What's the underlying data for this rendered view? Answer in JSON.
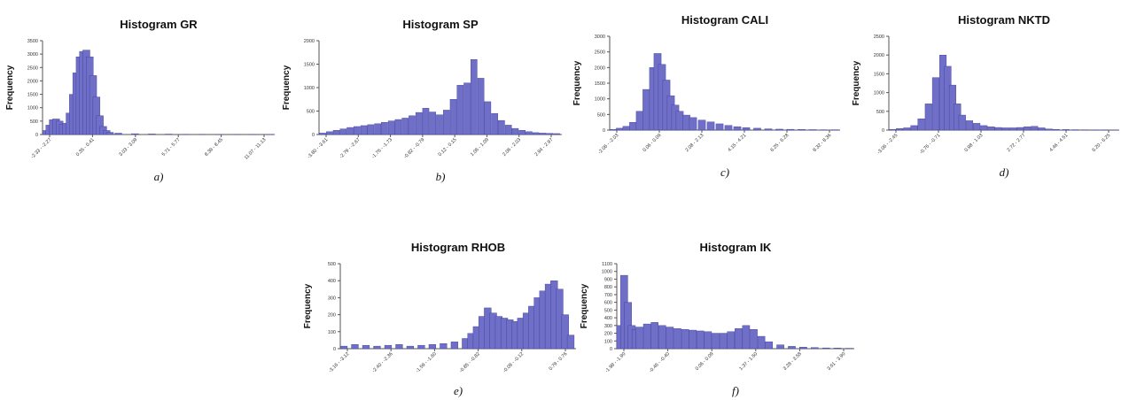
{
  "figure": {
    "bar_color": "#6f6fc8",
    "bar_edge": "#3b3b9a"
  },
  "chart_data": [
    {
      "type": "bar",
      "title": "Histogram GR",
      "ylabel": "Frequency",
      "sublabel": "a)",
      "ylim": [
        0,
        3500
      ],
      "yticks": [
        0,
        500,
        1000,
        1500,
        2000,
        2500,
        3000,
        3500
      ],
      "xticks": [
        "-2.33 - -2.27",
        "0.35 - 0.41",
        "3.03 - 3.09",
        "5.71 - 5.77",
        "8.39 - 8.45",
        "11.07 - 11.13"
      ],
      "x": [
        -2.3,
        -2.1,
        -1.9,
        -1.7,
        -1.5,
        -1.3,
        -1.1,
        -0.9,
        -0.7,
        -0.5,
        -0.3,
        -0.1,
        0.1,
        0.3,
        0.5,
        0.7,
        0.9,
        1.1,
        1.3,
        1.5,
        2.0,
        3.0,
        4.0,
        5.0,
        6.0,
        7.0,
        8.0,
        9.0,
        10.0,
        11.0
      ],
      "values": [
        150,
        350,
        550,
        580,
        500,
        380,
        420,
        800,
        1500,
        2300,
        2900,
        3100,
        3150,
        2900,
        2200,
        1400,
        700,
        300,
        150,
        80,
        50,
        30,
        20,
        15,
        10,
        8,
        5,
        5,
        3,
        3
      ]
    },
    {
      "type": "bar",
      "title": "Histogram  SP",
      "ylabel": "Frequency",
      "sublabel": "b)",
      "ylim": [
        0,
        2000
      ],
      "yticks": [
        0,
        500,
        1000,
        1500,
        2000
      ],
      "xticks": [
        "-3.80 - -3.61",
        "-2.79 - -2.67",
        "-1.76 - -1.73",
        "-0.82 - -0.79",
        "0.12 - 0.15",
        "1.06 - 1.09",
        "2.06 - 2.03",
        "2.94 - 2.97"
      ],
      "x": [
        -3.8,
        -3.6,
        -3.4,
        -3.2,
        -3.0,
        -2.8,
        -2.6,
        -2.4,
        -2.2,
        -2.0,
        -1.8,
        -1.6,
        -1.4,
        -1.2,
        -1.0,
        -0.8,
        -0.6,
        -0.4,
        -0.2,
        0.0,
        0.2,
        0.4,
        0.6,
        0.8,
        1.0,
        1.2,
        1.4,
        1.6,
        1.8,
        2.0,
        2.2,
        2.4,
        2.6,
        2.8,
        3.0
      ],
      "values": [
        30,
        60,
        90,
        120,
        150,
        170,
        190,
        210,
        230,
        260,
        290,
        320,
        350,
        400,
        470,
        560,
        480,
        420,
        520,
        750,
        1050,
        1100,
        1600,
        1200,
        700,
        450,
        300,
        200,
        130,
        90,
        60,
        40,
        30,
        25,
        20
      ]
    },
    {
      "type": "bar",
      "title": "Histogram CALI",
      "ylabel": "Frequency",
      "sublabel": "c)",
      "ylim": [
        0,
        3000
      ],
      "yticks": [
        0,
        500,
        1000,
        1500,
        2000,
        2500,
        3000
      ],
      "xticks": [
        "-2.06 - -2.03",
        "0.06 - 0.09",
        "2.08 - 2.13",
        "4.15 - 4.21",
        "6.25 - 6.28",
        "8.32 - 8.36"
      ],
      "x": [
        -2.0,
        -1.7,
        -1.4,
        -1.1,
        -0.8,
        -0.5,
        -0.2,
        0.0,
        0.2,
        0.4,
        0.6,
        0.8,
        1.0,
        1.3,
        1.6,
        2.0,
        2.4,
        2.8,
        3.2,
        3.6,
        4.0,
        4.5,
        5.0,
        5.5,
        6.0,
        6.5,
        7.0,
        7.5,
        8.0
      ],
      "values": [
        20,
        60,
        120,
        250,
        600,
        1300,
        2000,
        2450,
        2100,
        1600,
        1100,
        800,
        600,
        480,
        400,
        320,
        260,
        200,
        150,
        110,
        80,
        60,
        40,
        30,
        25,
        20,
        15,
        10,
        10
      ]
    },
    {
      "type": "bar",
      "title": "Histogram  NKTD",
      "ylabel": "Frequency",
      "sublabel": "d)",
      "ylim": [
        0,
        2500
      ],
      "yticks": [
        0,
        500,
        1000,
        1500,
        2000,
        2500
      ],
      "xticks": [
        "-3.06 - -2.45",
        "-0.76 - -0.71",
        "0.98 - 1.03",
        "2.72 - 2.77",
        "4.46 - 4.51",
        "6.20 - 6.25"
      ],
      "x": [
        -3.0,
        -2.7,
        -2.4,
        -2.1,
        -1.8,
        -1.5,
        -1.2,
        -0.9,
        -0.7,
        -0.5,
        -0.3,
        -0.1,
        0.2,
        0.5,
        0.8,
        1.1,
        1.4,
        1.7,
        2.0,
        2.3,
        2.6,
        2.9,
        3.2,
        3.5,
        3.8,
        4.2,
        4.6,
        5.0,
        5.4,
        5.8,
        6.2
      ],
      "values": [
        20,
        40,
        60,
        120,
        300,
        700,
        1400,
        2000,
        1700,
        1200,
        700,
        400,
        250,
        180,
        120,
        90,
        70,
        60,
        60,
        70,
        90,
        100,
        60,
        30,
        20,
        15,
        10,
        8,
        5,
        5,
        3
      ]
    },
    {
      "type": "bar",
      "title": "Histogram  RHOB",
      "ylabel": "Frequency",
      "sublabel": "e)",
      "ylim": [
        0,
        500
      ],
      "yticks": [
        0,
        100,
        200,
        300,
        400,
        500
      ],
      "xticks": [
        "-3.16 - -3.12",
        "-2.40 - -2.36",
        "-1.59 - -1.60",
        "-0.85 - -0.82",
        "-0.09 - -0.12",
        "0.79 - 0.76"
      ],
      "x": [
        -3.2,
        -3.0,
        -2.8,
        -2.6,
        -2.4,
        -2.2,
        -2.0,
        -1.8,
        -1.6,
        -1.4,
        -1.2,
        -1.0,
        -0.9,
        -0.8,
        -0.7,
        -0.6,
        -0.5,
        -0.4,
        -0.3,
        -0.2,
        -0.1,
        0.0,
        0.1,
        0.2,
        0.3,
        0.4,
        0.5,
        0.6,
        0.7,
        0.8,
        0.9
      ],
      "values": [
        15,
        25,
        20,
        15,
        20,
        25,
        15,
        20,
        25,
        30,
        40,
        60,
        90,
        130,
        190,
        240,
        210,
        190,
        180,
        170,
        160,
        180,
        210,
        250,
        300,
        340,
        380,
        400,
        350,
        200,
        80
      ]
    },
    {
      "type": "bar",
      "title": "Histogram  IK",
      "ylabel": "Frequency",
      "sublabel": "f)",
      "ylim": [
        0,
        1100
      ],
      "yticks": [
        0,
        100,
        200,
        300,
        400,
        500,
        600,
        700,
        800,
        900,
        1000,
        1100
      ],
      "xticks": [
        "-1.98 - -1.90",
        "-0.46 - -0.40",
        "0.06 - 0.09",
        "1.37 - 1.50",
        "3.28 - 3.58",
        "3.61 - 3.90"
      ],
      "x": [
        -2.0,
        -1.9,
        -1.8,
        -1.7,
        -1.6,
        -1.5,
        -1.3,
        -1.1,
        -0.9,
        -0.7,
        -0.5,
        -0.3,
        -0.1,
        0.1,
        0.3,
        0.5,
        0.7,
        0.9,
        1.1,
        1.3,
        1.5,
        1.7,
        1.9,
        2.2,
        2.5,
        2.8,
        3.1,
        3.4,
        3.7,
        4.0
      ],
      "values": [
        300,
        950,
        600,
        300,
        250,
        280,
        320,
        340,
        300,
        280,
        260,
        250,
        240,
        230,
        220,
        200,
        200,
        220,
        260,
        300,
        250,
        160,
        90,
        50,
        30,
        20,
        15,
        10,
        8,
        5
      ]
    }
  ]
}
